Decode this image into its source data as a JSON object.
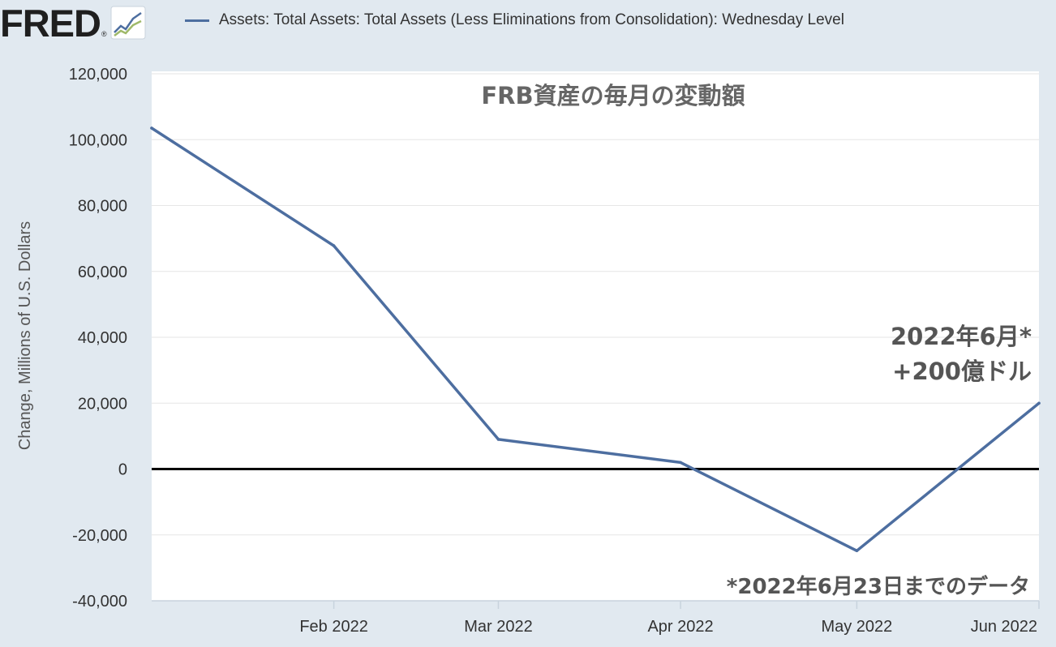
{
  "header": {
    "logo_text": "FRED",
    "logo_reg": "®",
    "legend_label": "Assets: Total Assets: Total Assets (Less Eliminations from Consolidation): Wednesday Level"
  },
  "colors": {
    "series": "#4d6ea0",
    "page_background": "#e1e9f0",
    "plot_background": "#ffffff",
    "zero_line": "#000000",
    "annotation_text": "#555555"
  },
  "chart_data": {
    "type": "line",
    "title": "FRB資産の毎月の変動額",
    "xlabel": "",
    "ylabel": "Change, Millions of U.S. Dollars",
    "x": [
      "2022-01",
      "2022-02",
      "2022-03",
      "2022-04",
      "2022-05",
      "2022-06"
    ],
    "x_tick_labels": [
      "Feb 2022",
      "Mar 2022",
      "Apr 2022",
      "May 2022",
      "Jun 2022"
    ],
    "series": [
      {
        "name": "Assets: Total Assets: Total Assets (Less Eliminations from Consolidation): Wednesday Level",
        "values": [
          103500,
          67800,
          9000,
          2000,
          -24800,
          20000
        ]
      }
    ],
    "ylim": [
      -40000,
      120000
    ],
    "y_ticks": [
      -40000,
      -20000,
      0,
      20000,
      40000,
      60000,
      80000,
      100000,
      120000
    ],
    "y_tick_labels": [
      "-40,000",
      "-20,000",
      "0",
      "20,000",
      "40,000",
      "60,000",
      "80,000",
      "100,000",
      "120,000"
    ],
    "grid": true,
    "legend": "top",
    "annotations": {
      "june_line1": "2022年6月*",
      "june_line2": "+200億ドル",
      "footnote": "*2022年6月23日までのデータ"
    }
  }
}
